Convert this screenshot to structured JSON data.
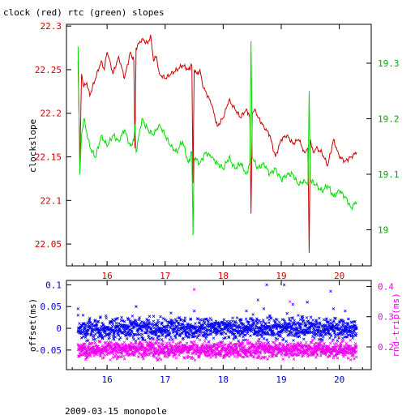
{
  "page": {
    "title": "clock (red) rtc (green) slopes",
    "footer": "2009-03-15 monopole"
  },
  "colors": {
    "axes": "#000000",
    "clock": "#cc0000",
    "rtc": "#00dd00",
    "offset": "#0000ee",
    "roundtrip": "#ee00ee"
  },
  "chart_data": [
    {
      "type": "line",
      "title": "clock (red) rtc (green) slopes",
      "xlabel": "",
      "ylabel": "clockslope",
      "ylabel_right": "",
      "xlim": [
        15.3,
        20.55
      ],
      "ylim": [
        22.025,
        22.302
      ],
      "ylim_right": [
        18.935,
        19.37
      ],
      "xticks": [
        "16",
        "17",
        "18",
        "19",
        "20"
      ],
      "yticks": [
        "22.05",
        "22.1",
        "22.15",
        "22.2",
        "22.25",
        "22.3"
      ],
      "yticks_right": [
        "19",
        "19.1",
        "19.2",
        "19.3"
      ],
      "series": [
        {
          "name": "clock",
          "axis": "left",
          "points": [
            [
              15.5,
              22.26
            ],
            [
              15.53,
              22.14
            ],
            [
              15.56,
              22.245
            ],
            [
              15.6,
              22.23
            ],
            [
              15.65,
              22.235
            ],
            [
              15.7,
              22.22
            ],
            [
              15.8,
              22.24
            ],
            [
              15.9,
              22.26
            ],
            [
              15.95,
              22.25
            ],
            [
              16.0,
              22.27
            ],
            [
              16.05,
              22.26
            ],
            [
              16.1,
              22.245
            ],
            [
              16.2,
              22.265
            ],
            [
              16.3,
              22.24
            ],
            [
              16.4,
              22.27
            ],
            [
              16.46,
              22.26
            ],
            [
              16.48,
              22.16
            ],
            [
              16.5,
              22.275
            ],
            [
              16.6,
              22.285
            ],
            [
              16.7,
              22.28
            ],
            [
              16.75,
              22.29
            ],
            [
              16.8,
              22.26
            ],
            [
              16.85,
              22.265
            ],
            [
              16.9,
              22.245
            ],
            [
              17.0,
              22.24
            ],
            [
              17.1,
              22.245
            ],
            [
              17.2,
              22.25
            ],
            [
              17.3,
              22.255
            ],
            [
              17.4,
              22.25
            ],
            [
              17.46,
              22.255
            ],
            [
              17.48,
              22.12
            ],
            [
              17.5,
              22.25
            ],
            [
              17.55,
              22.245
            ],
            [
              17.6,
              22.25
            ],
            [
              17.65,
              22.23
            ],
            [
              17.7,
              22.225
            ],
            [
              17.8,
              22.21
            ],
            [
              17.9,
              22.185
            ],
            [
              18.0,
              22.195
            ],
            [
              18.1,
              22.215
            ],
            [
              18.2,
              22.205
            ],
            [
              18.3,
              22.195
            ],
            [
              18.4,
              22.205
            ],
            [
              18.46,
              22.195
            ],
            [
              18.48,
              22.085
            ],
            [
              18.5,
              22.2
            ],
            [
              18.55,
              22.205
            ],
            [
              18.6,
              22.195
            ],
            [
              18.7,
              22.185
            ],
            [
              18.8,
              22.175
            ],
            [
              18.9,
              22.15
            ],
            [
              19.0,
              22.17
            ],
            [
              19.1,
              22.175
            ],
            [
              19.2,
              22.165
            ],
            [
              19.3,
              22.17
            ],
            [
              19.4,
              22.155
            ],
            [
              19.46,
              22.16
            ],
            [
              19.48,
              22.04
            ],
            [
              19.5,
              22.17
            ],
            [
              19.55,
              22.155
            ],
            [
              19.6,
              22.16
            ],
            [
              19.7,
              22.155
            ],
            [
              19.8,
              22.14
            ],
            [
              19.9,
              22.17
            ],
            [
              20.0,
              22.15
            ],
            [
              20.1,
              22.145
            ],
            [
              20.2,
              22.15
            ],
            [
              20.3,
              22.155
            ]
          ]
        },
        {
          "name": "rtc",
          "axis": "right",
          "points": [
            [
              15.5,
              19.33
            ],
            [
              15.53,
              19.1
            ],
            [
              15.56,
              19.17
            ],
            [
              15.6,
              19.2
            ],
            [
              15.7,
              19.15
            ],
            [
              15.8,
              19.13
            ],
            [
              15.9,
              19.17
            ],
            [
              16.0,
              19.15
            ],
            [
              16.1,
              19.17
            ],
            [
              16.2,
              19.16
            ],
            [
              16.3,
              19.18
            ],
            [
              16.4,
              19.15
            ],
            [
              16.46,
              19.16
            ],
            [
              16.48,
              19.19
            ],
            [
              16.5,
              19.14
            ],
            [
              16.6,
              19.2
            ],
            [
              16.7,
              19.18
            ],
            [
              16.8,
              19.17
            ],
            [
              16.9,
              19.19
            ],
            [
              17.0,
              19.17
            ],
            [
              17.1,
              19.15
            ],
            [
              17.2,
              19.14
            ],
            [
              17.3,
              19.16
            ],
            [
              17.4,
              19.12
            ],
            [
              17.46,
              19.14
            ],
            [
              17.48,
              18.99
            ],
            [
              17.5,
              19.13
            ],
            [
              17.6,
              19.12
            ],
            [
              17.7,
              19.14
            ],
            [
              17.8,
              19.13
            ],
            [
              17.9,
              19.12
            ],
            [
              18.0,
              19.11
            ],
            [
              18.1,
              19.13
            ],
            [
              18.2,
              19.11
            ],
            [
              18.3,
              19.12
            ],
            [
              18.4,
              19.1
            ],
            [
              18.46,
              19.12
            ],
            [
              18.48,
              19.34
            ],
            [
              18.5,
              19.13
            ],
            [
              18.6,
              19.11
            ],
            [
              18.7,
              19.12
            ],
            [
              18.8,
              19.1
            ],
            [
              18.9,
              19.11
            ],
            [
              19.0,
              19.09
            ],
            [
              19.1,
              19.1
            ],
            [
              19.2,
              19.1
            ],
            [
              19.3,
              19.08
            ],
            [
              19.4,
              19.09
            ],
            [
              19.46,
              19.08
            ],
            [
              19.48,
              19.25
            ],
            [
              19.5,
              19.09
            ],
            [
              19.6,
              19.08
            ],
            [
              19.7,
              19.07
            ],
            [
              19.8,
              19.08
            ],
            [
              19.9,
              19.06
            ],
            [
              20.0,
              19.07
            ],
            [
              20.1,
              19.06
            ],
            [
              20.2,
              19.04
            ],
            [
              20.3,
              19.05
            ]
          ]
        }
      ]
    },
    {
      "type": "scatter",
      "ylabel": "offset(ms)",
      "ylabel_right": "rnd-trip(ms)",
      "xlim": [
        15.3,
        20.55
      ],
      "ylim": [
        -0.095,
        0.11
      ],
      "ylim_right": [
        0.125,
        0.42
      ],
      "xticks": [
        "16",
        "17",
        "18",
        "19",
        "20"
      ],
      "yticks": [
        "-0.05",
        "0",
        "0.05",
        "0.1"
      ],
      "yticks_right": [
        "0.2",
        "0.3",
        "0.4"
      ],
      "series": [
        {
          "name": "offset",
          "axis": "left",
          "x_range": [
            15.5,
            20.3
          ],
          "band_center": 0.0,
          "band_spread": 0.012,
          "outliers": [
            [
              15.5,
              0.045
            ],
            [
              15.5,
              0.03
            ],
            [
              16.5,
              0.05
            ],
            [
              17.5,
              0.04
            ],
            [
              17.1,
              0.035
            ],
            [
              18.4,
              0.04
            ],
            [
              18.6,
              0.065
            ],
            [
              18.7,
              0.045
            ],
            [
              18.75,
              0.1
            ],
            [
              19.05,
              0.1
            ],
            [
              19.2,
              0.055
            ],
            [
              19.45,
              0.06
            ],
            [
              19.85,
              0.085
            ],
            [
              19.9,
              0.045
            ],
            [
              20.1,
              0.04
            ],
            [
              15.6,
              -0.045
            ],
            [
              16.4,
              -0.045
            ]
          ]
        },
        {
          "name": "roundtrip",
          "axis": "right",
          "x_range": [
            15.5,
            20.3
          ],
          "band_center": 0.19,
          "band_spread": 0.013,
          "outliers": [
            [
              17.5,
              0.39
            ],
            [
              19.15,
              0.35
            ],
            [
              18.6,
              0.22
            ],
            [
              17.6,
              0.24
            ],
            [
              20.0,
              0.23
            ],
            [
              19.7,
              0.22
            ],
            [
              16.3,
              0.16
            ]
          ]
        }
      ]
    }
  ]
}
